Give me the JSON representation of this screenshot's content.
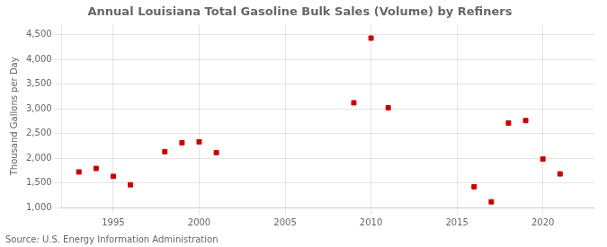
{
  "chart_data": {
    "type": "scatter",
    "title": "Annual Louisiana Total Gasoline Bulk Sales (Volume) by Refiners",
    "ylabel": "Thousand Gallons per Day",
    "source": "Source: U.S. Energy Information Administration",
    "x": [
      1993,
      1994,
      1995,
      1996,
      1998,
      1999,
      2000,
      2001,
      2009,
      2010,
      2011,
      2016,
      2017,
      2018,
      2019,
      2020,
      2021
    ],
    "values": [
      1720,
      1790,
      1630,
      1460,
      2130,
      2310,
      2330,
      2110,
      3120,
      4430,
      3020,
      1420,
      1115,
      2710,
      2760,
      1980,
      1680
    ],
    "color": "#cc0000",
    "marker": "square",
    "xlim": [
      1992,
      2023
    ],
    "xticks": [
      1995,
      2000,
      2005,
      2010,
      2015,
      2020
    ],
    "ylim": [
      1000,
      4700
    ],
    "yticks": [
      {
        "value": 1000,
        "label": "1,000"
      },
      {
        "value": 1500,
        "label": "1,500"
      },
      {
        "value": 2000,
        "label": "2,000"
      },
      {
        "value": 2500,
        "label": "2,500"
      },
      {
        "value": 3000,
        "label": "3,000"
      },
      {
        "value": 3500,
        "label": "3,500"
      },
      {
        "value": 4000,
        "label": "4,000"
      },
      {
        "value": 4500,
        "label": "4,500"
      }
    ],
    "grid": true
  }
}
